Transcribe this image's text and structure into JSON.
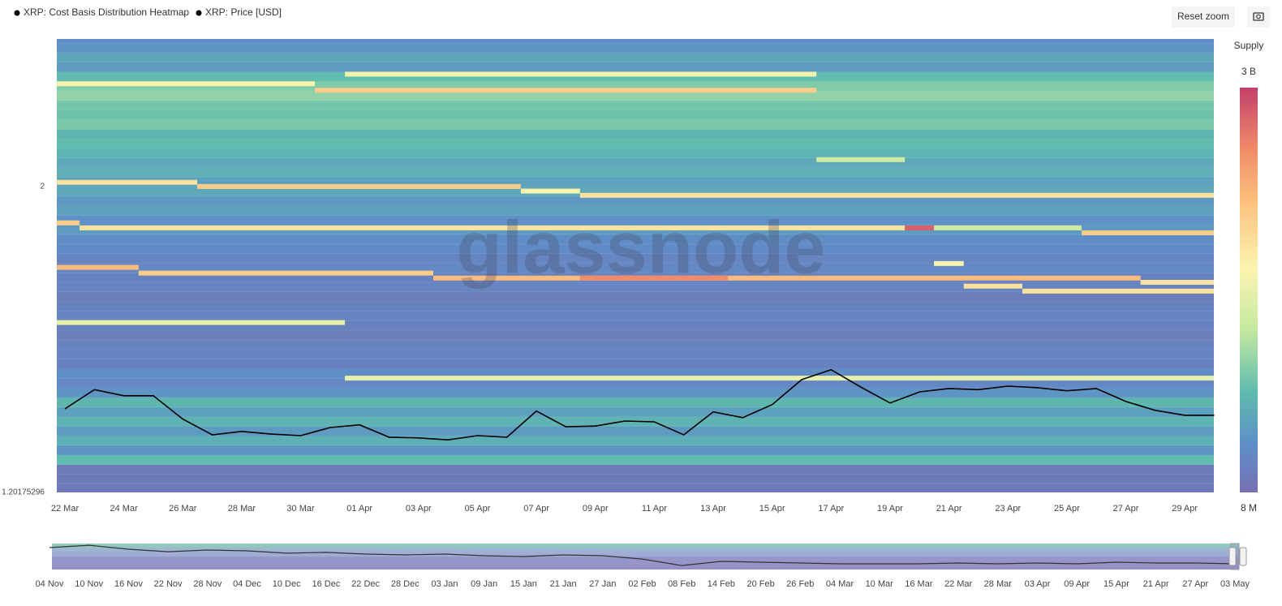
{
  "chart_data": [
    {
      "type": "heatmap",
      "categories": [
        "22 Mar",
        null,
        "24 Mar",
        null,
        "26 Mar",
        null,
        "28 Mar",
        null,
        "30 Mar",
        null,
        "01 Apr",
        null,
        "03 Apr",
        null,
        "05 Apr",
        null,
        "07 Apr",
        null,
        "09 Apr",
        null,
        "11 Apr",
        null,
        "13 Apr",
        null,
        "15 Apr",
        null,
        "17 Apr",
        null,
        "19 Apr",
        null,
        "21 Apr",
        null,
        "23 Apr",
        null,
        "25 Apr",
        null,
        "27 Apr",
        null,
        "29 Apr",
        null
      ],
      "series": [
        {
          "name": "XRP: Price [USD]",
          "color": "#000000",
          "values": [
            1.42,
            1.47,
            1.454,
            1.454,
            1.393,
            1.352,
            1.361,
            1.354,
            1.35,
            1.371,
            1.378,
            1.346,
            1.344,
            1.339,
            1.35,
            1.346,
            1.414,
            1.373,
            1.375,
            1.388,
            1.386,
            1.352,
            1.412,
            1.397,
            1.431,
            1.496,
            1.522,
            1.477,
            1.435,
            1.464,
            1.473,
            1.47,
            1.479,
            1.475,
            1.467,
            1.473,
            1.439,
            1.416,
            1.403,
            1.403
          ]
        }
      ],
      "ylim": [
        1.20175296,
        2.385
      ],
      "yticks": [
        {
          "value": 1.20175296,
          "label": "1.20175296"
        },
        2
      ],
      "heatmap": {
        "name": "XRP: Cost Basis Distribution Heatmap",
        "legend_color": "#000000",
        "bins": [
          1.2,
          1.225,
          1.25,
          1.275,
          1.3,
          1.325,
          1.35,
          1.375,
          1.4,
          1.425,
          1.45,
          1.475,
          1.5,
          1.525,
          1.55,
          1.575,
          1.6,
          1.625,
          1.65,
          1.675,
          1.7,
          1.725,
          1.75,
          1.775,
          1.8,
          1.825,
          1.85,
          1.875,
          1.9,
          1.925,
          1.95,
          1.975,
          2.0,
          2.025,
          2.05,
          2.075,
          2.1,
          2.125,
          2.15,
          2.175,
          2.2,
          2.225,
          2.25,
          2.275,
          2.3,
          2.325,
          2.35,
          2.375,
          2.4
        ],
        "supply": [
          10000000,
          10000000,
          10000000,
          35000000,
          18000000,
          28000000,
          20000000,
          30000000,
          22000000,
          32000000,
          18000000,
          14000000,
          16000000,
          12000000,
          13000000,
          12000000,
          11000000,
          12000000,
          13000000,
          12000000,
          11000000,
          13000000,
          12000000,
          14000000,
          13000000,
          15000000,
          16000000,
          20000000,
          17000000,
          22000000,
          19000000,
          25000000,
          22000000,
          28000000,
          25000000,
          30000000,
          35000000,
          32000000,
          45000000,
          40000000,
          42000000,
          55000000,
          48000000,
          35000000,
          20000000,
          24000000,
          18000000,
          15000000
        ],
        "bands": [
          {
            "price": 2.268,
            "from": -0.5,
            "to": 8.48,
            "supply": 200000000
          },
          {
            "price": 2.251,
            "from": 8.48,
            "to": 25.5,
            "supply": 450000000
          },
          {
            "price": 2.293,
            "from": 9.5,
            "to": 25.5,
            "supply": 180000000
          },
          {
            "price": 2.011,
            "from": -0.5,
            "to": 4.49,
            "supply": 300000000
          },
          {
            "price": 2.0,
            "from": 4.49,
            "to": 15.47,
            "supply": 450000000
          },
          {
            "price": 1.988,
            "from": 15.47,
            "to": 17.48,
            "supply": 200000000
          },
          {
            "price": 1.977,
            "from": 17.48,
            "to": 39.5,
            "supply": 300000000
          },
          {
            "price": 1.905,
            "from": -0.5,
            "to": 0.5,
            "supply": 450000000
          },
          {
            "price": 1.892,
            "from": 0.5,
            "to": 28.5,
            "supply": 300000000
          },
          {
            "price": 1.892,
            "from": 28.5,
            "to": 29.49,
            "supply": 2000000000
          },
          {
            "price": 1.892,
            "from": 29.49,
            "to": 34.5,
            "supply": 100000000
          },
          {
            "price": 1.879,
            "from": 34.5,
            "to": 39.5,
            "supply": 450000000
          },
          {
            "price": 1.789,
            "from": -0.5,
            "to": 2.5,
            "supply": 600000000
          },
          {
            "price": 1.774,
            "from": 2.5,
            "to": 12.5,
            "supply": 450000000
          },
          {
            "price": 1.761,
            "from": 12.5,
            "to": 36.5,
            "supply": 600000000
          },
          {
            "price": 1.761,
            "from": 17.48,
            "to": 22.5,
            "supply": 1200000000
          },
          {
            "price": 1.799,
            "from": 29.49,
            "to": 30.5,
            "supply": 200000000
          },
          {
            "price": 1.74,
            "from": 30.5,
            "to": 32.49,
            "supply": 300000000
          },
          {
            "price": 1.727,
            "from": 32.49,
            "to": 39.5,
            "supply": 300000000
          },
          {
            "price": 1.75,
            "from": 36.5,
            "to": 39.5,
            "supply": 300000000
          },
          {
            "price": 1.645,
            "from": -0.5,
            "to": 9.5,
            "supply": 150000000
          },
          {
            "price": 1.5,
            "from": 9.5,
            "to": 39.5,
            "supply": 150000000
          },
          {
            "price": 2.07,
            "from": 25.5,
            "to": 28.5,
            "supply": 100000000
          }
        ],
        "colormap": [
          {
            "stop": 0,
            "color": "#7670b3"
          },
          {
            "stop": 0.12,
            "color": "#5e8fc8"
          },
          {
            "stop": 0.25,
            "color": "#5fbcae"
          },
          {
            "stop": 0.4,
            "color": "#c4e8a0"
          },
          {
            "stop": 0.55,
            "color": "#faf5b0"
          },
          {
            "stop": 0.72,
            "color": "#fdc07e"
          },
          {
            "stop": 0.85,
            "color": "#f08a68"
          },
          {
            "stop": 1,
            "color": "#c3406b"
          }
        ],
        "colorbar": {
          "title": "Supply",
          "scale": "log",
          "ticks": [
            {
              "value": 3000000000,
              "label": "3 B"
            },
            {
              "value": 8000000,
              "label": "8 M"
            }
          ]
        }
      },
      "watermark": "glassnode"
    },
    {
      "type": "line",
      "categories": [
        "04 Nov",
        "10 Nov",
        "16 Nov",
        "22 Nov",
        "28 Nov",
        "04 Dec",
        "10 Dec",
        "16 Dec",
        "22 Dec",
        "28 Dec",
        "03 Jan",
        "09 Jan",
        "15 Jan",
        "21 Jan",
        "27 Jan",
        "02 Feb",
        "08 Feb",
        "14 Feb",
        "20 Feb",
        "26 Feb",
        "04 Mar",
        "10 Mar",
        "16 Mar",
        "22 Mar",
        "28 Mar",
        "03 Apr",
        "09 Apr",
        "15 Apr",
        "21 Apr",
        "27 Apr",
        "03 May"
      ],
      "values": [
        2.59,
        2.76,
        2.47,
        2.29,
        2.41,
        2.35,
        2.18,
        2.24,
        2.12,
        2.06,
        2.12,
        2.0,
        1.94,
        2.06,
        2.0,
        1.76,
        1.29,
        1.59,
        1.53,
        1.47,
        1.41,
        1.41,
        1.41,
        1.47,
        1.41,
        1.47,
        1.41,
        1.53,
        1.47,
        1.47,
        1.41
      ],
      "color": "#333333",
      "ylim": [
        1.0,
        3.0
      ]
    }
  ],
  "ui": {
    "reset_zoom": "Reset zoom"
  }
}
